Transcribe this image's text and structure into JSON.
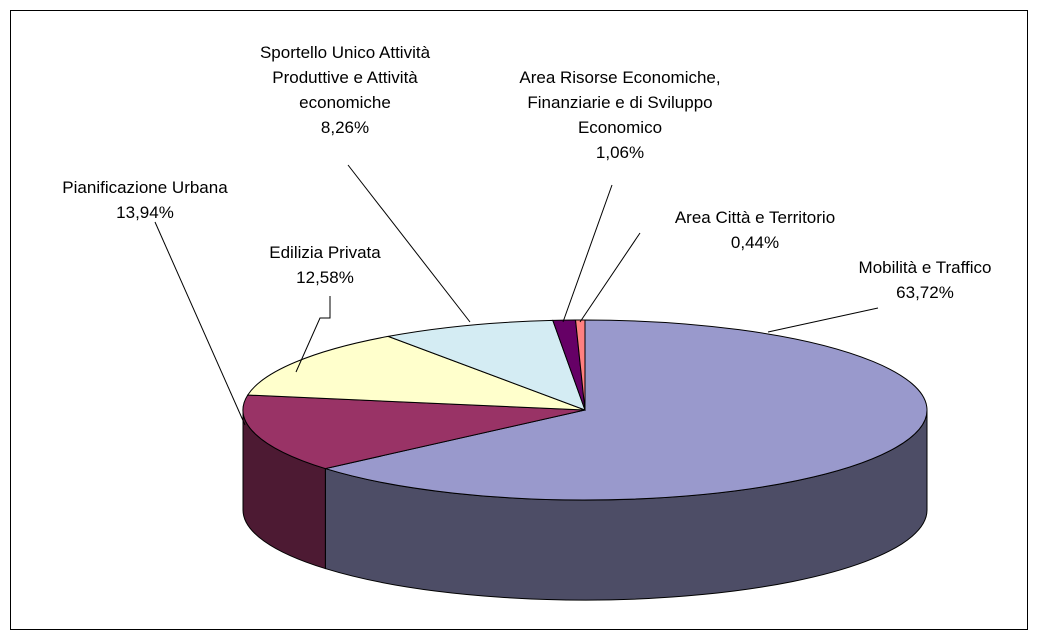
{
  "chart_data": {
    "type": "pie",
    "categories": [
      "Mobilità e Traffico",
      "Pianificazione Urbana",
      "Edilizia Privata",
      "Sportello Unico Attività Produttive e Attività economiche",
      "Area Risorse Economiche, Finanziarie e di Sviluppo Economico",
      "Area Città e Territorio"
    ],
    "values": [
      63.72,
      13.94,
      12.58,
      8.26,
      1.06,
      0.44
    ],
    "value_labels": [
      "63,72%",
      "13,94%",
      "12,58%",
      "8,26%",
      "1,06%",
      "0,44%"
    ],
    "colors": [
      "#9999cc",
      "#993366",
      "#ffffcc",
      "#d4ecf3",
      "#660066",
      "#ff8080"
    ]
  }
}
